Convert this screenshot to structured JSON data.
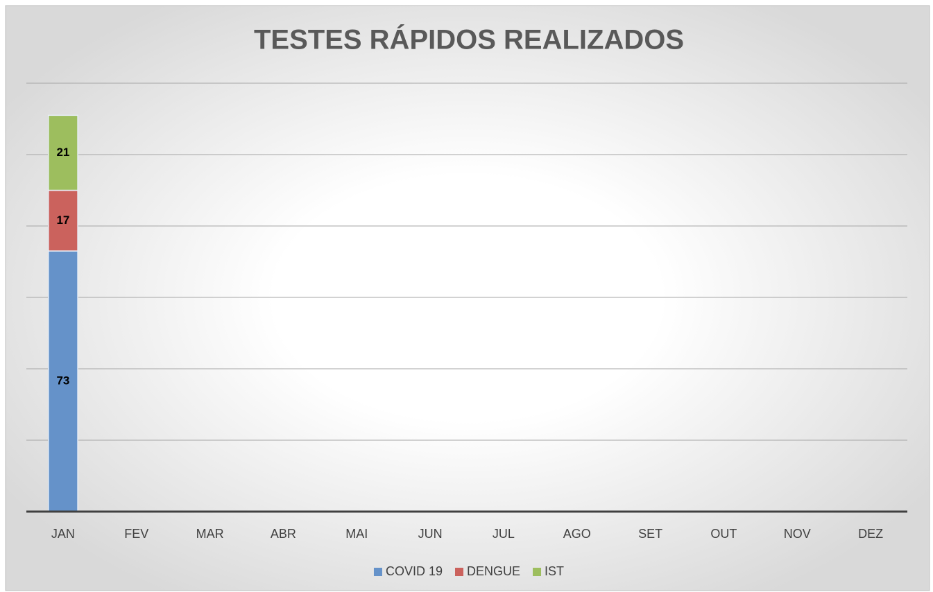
{
  "chart_data": {
    "type": "stacked_bar",
    "title": "TESTES RÁPIDOS REALIZADOS",
    "categories": [
      "JAN",
      "FEV",
      "MAR",
      "ABR",
      "MAI",
      "JUN",
      "JUL",
      "AGO",
      "SET",
      "OUT",
      "NOV",
      "DEZ"
    ],
    "series": [
      {
        "name": "COVID 19",
        "color": "#6592c9",
        "values": [
          73,
          null,
          null,
          null,
          null,
          null,
          null,
          null,
          null,
          null,
          null,
          null
        ]
      },
      {
        "name": "DENGUE",
        "color": "#cb625d",
        "values": [
          17,
          null,
          null,
          null,
          null,
          null,
          null,
          null,
          null,
          null,
          null,
          null
        ]
      },
      {
        "name": "IST",
        "color": "#9dbe5e",
        "values": [
          21,
          null,
          null,
          null,
          null,
          null,
          null,
          null,
          null,
          null,
          null,
          null
        ]
      }
    ],
    "ylim": [
      0,
      120
    ],
    "yticks": [
      0,
      20,
      40,
      60,
      80,
      100,
      120
    ],
    "grid": true,
    "legend": "bottom"
  }
}
